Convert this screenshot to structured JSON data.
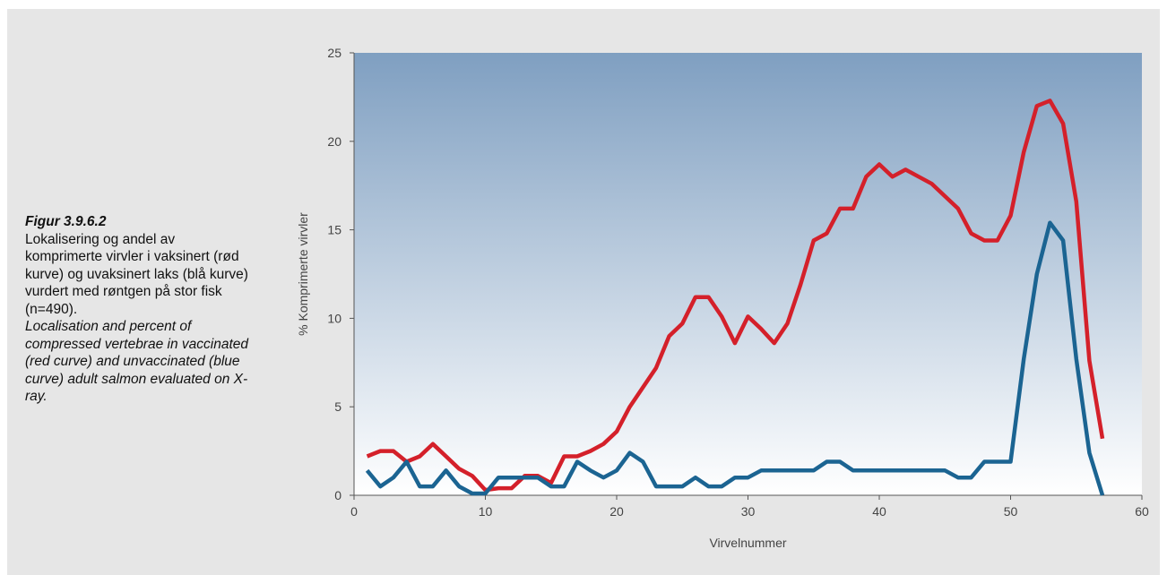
{
  "caption": {
    "title": "Figur 3.9.6.2",
    "norwegian": "Lokalisering og andel av komprimerte virvler i vaksinert (rød kurve) og uvaksinert laks (blå kurve) vurdert med røntgen på stor fisk (n=490).",
    "english": "Localisation and percent of compressed vertebrae in vaccinated (red curve) and unvaccinated (blue curve) adult salmon evaluated on X-ray."
  },
  "colors": {
    "panel_background": "#e6e6e6",
    "plot_gradient_top": "#7f9fc1",
    "plot_gradient_bottom": "#ffffff",
    "vaccinated_line": "#d4202a",
    "unvaccinated_line": "#1b6492"
  },
  "chart_data": {
    "type": "line",
    "title": "",
    "xlabel": "Virvelnummer",
    "ylabel": "% Komprimerte virvler",
    "xlim": [
      0,
      60
    ],
    "ylim": [
      0,
      25
    ],
    "x_ticks": [
      0,
      10,
      20,
      30,
      40,
      50,
      60
    ],
    "y_ticks": [
      0,
      5,
      10,
      15,
      20,
      25
    ],
    "grid": false,
    "legend": "none",
    "x": [
      1,
      2,
      3,
      4,
      5,
      6,
      7,
      8,
      9,
      10,
      11,
      12,
      13,
      14,
      15,
      16,
      17,
      18,
      19,
      20,
      21,
      22,
      23,
      24,
      25,
      26,
      27,
      28,
      29,
      30,
      31,
      32,
      33,
      34,
      35,
      36,
      37,
      38,
      39,
      40,
      41,
      42,
      43,
      44,
      45,
      46,
      47,
      48,
      49,
      50,
      51,
      52,
      53,
      54,
      55,
      56,
      57
    ],
    "series": [
      {
        "id": "vaccinated",
        "color": "#d4202a",
        "values": [
          2.2,
          2.5,
          2.5,
          1.9,
          2.2,
          2.9,
          2.2,
          1.5,
          1.1,
          0.3,
          0.4,
          0.4,
          1.1,
          1.1,
          0.7,
          2.2,
          2.2,
          2.5,
          2.9,
          3.6,
          5.0,
          6.1,
          7.2,
          9.0,
          9.7,
          11.2,
          11.2,
          10.1,
          8.6,
          10.1,
          9.4,
          8.6,
          9.7,
          11.9,
          14.4,
          14.8,
          16.2,
          16.2,
          18.0,
          18.7,
          18.0,
          18.4,
          18.0,
          17.6,
          16.9,
          16.2,
          14.8,
          14.4,
          14.4,
          15.8,
          19.4,
          22.0,
          22.3,
          21.0,
          16.6,
          7.6,
          3.2
        ]
      },
      {
        "id": "unvaccinated",
        "color": "#1b6492",
        "values": [
          1.4,
          0.5,
          1.0,
          1.9,
          0.5,
          0.5,
          1.4,
          0.5,
          0.1,
          0.1,
          1.0,
          1.0,
          1.0,
          1.0,
          0.5,
          0.5,
          1.9,
          1.4,
          1.0,
          1.4,
          2.4,
          1.9,
          0.5,
          0.5,
          0.5,
          1.0,
          0.5,
          0.5,
          1.0,
          1.0,
          1.4,
          1.4,
          1.4,
          1.4,
          1.4,
          1.9,
          1.9,
          1.4,
          1.4,
          1.4,
          1.4,
          1.4,
          1.4,
          1.4,
          1.4,
          1.0,
          1.0,
          1.9,
          1.9,
          1.9,
          7.7,
          12.5,
          15.4,
          14.4,
          7.7,
          2.4,
          0.0
        ]
      }
    ]
  }
}
